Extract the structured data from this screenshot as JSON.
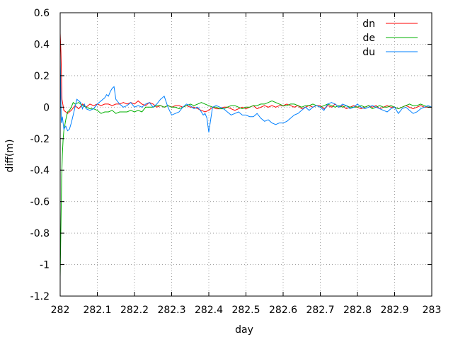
{
  "chart_data": {
    "type": "line",
    "title": "",
    "xlabel": "day",
    "ylabel": "diff(m)",
    "xlim": [
      282,
      283
    ],
    "ylim": [
      -1.2,
      0.6
    ],
    "xticks": [
      282,
      282.1,
      282.2,
      282.3,
      282.4,
      282.5,
      282.6,
      282.7,
      282.8,
      282.9,
      283
    ],
    "xtick_labels": [
      "282",
      "282.1",
      "282.2",
      "282.3",
      "282.4",
      "282.5",
      "282.6",
      "282.7",
      "282.8",
      "282.9",
      "283"
    ],
    "yticks": [
      -1.2,
      -1,
      -0.8,
      -0.6,
      -0.4,
      -0.2,
      0,
      0.2,
      0.4,
      0.6
    ],
    "ytick_labels": [
      "-1.2",
      "-1",
      "-0.8",
      "-0.6",
      "-0.4",
      "-0.2",
      "0",
      "0.2",
      "0.4",
      "0.6"
    ],
    "grid": true,
    "legend_position": "top-right",
    "series": [
      {
        "name": "dn",
        "color": "#ff0000",
        "x": [
          282.0,
          282.002,
          282.005,
          282.01,
          282.015,
          282.02,
          282.025,
          282.03,
          282.04,
          282.05,
          282.06,
          282.07,
          282.08,
          282.09,
          282.1,
          282.11,
          282.12,
          282.13,
          282.14,
          282.15,
          282.16,
          282.17,
          282.18,
          282.19,
          282.2,
          282.21,
          282.22,
          282.23,
          282.24,
          282.25,
          282.26,
          282.27,
          282.28,
          282.29,
          282.3,
          282.31,
          282.32,
          282.33,
          282.34,
          282.35,
          282.36,
          282.37,
          282.38,
          282.39,
          282.4,
          282.41,
          282.42,
          282.43,
          282.44,
          282.45,
          282.46,
          282.47,
          282.48,
          282.49,
          282.5,
          282.51,
          282.52,
          282.53,
          282.54,
          282.55,
          282.56,
          282.57,
          282.58,
          282.59,
          282.6,
          282.61,
          282.62,
          282.63,
          282.64,
          282.65,
          282.66,
          282.67,
          282.68,
          282.69,
          282.7,
          282.71,
          282.72,
          282.73,
          282.74,
          282.75,
          282.76,
          282.77,
          282.78,
          282.79,
          282.8,
          282.81,
          282.82,
          282.83,
          282.84,
          282.85,
          282.86,
          282.87,
          282.88,
          282.89,
          282.9,
          282.91,
          282.92,
          282.93,
          282.94,
          282.95,
          282.96,
          282.97,
          282.98,
          282.99,
          283.0
        ],
        "y": [
          0.47,
          0.35,
          0.05,
          -0.02,
          -0.03,
          -0.04,
          -0.03,
          -0.02,
          0.01,
          -0.01,
          0.02,
          0.0,
          0.02,
          0.01,
          0.02,
          0.01,
          0.02,
          0.02,
          0.01,
          0.02,
          0.02,
          0.03,
          0.02,
          0.03,
          0.02,
          0.04,
          0.02,
          0.01,
          0.03,
          0.02,
          0.0,
          0.01,
          0.0,
          0.01,
          0.0,
          0.01,
          0.01,
          0.0,
          0.01,
          0.0,
          0.0,
          -0.01,
          -0.02,
          -0.03,
          -0.02,
          0.0,
          -0.01,
          -0.01,
          0.0,
          0.0,
          -0.01,
          -0.02,
          -0.01,
          0.0,
          -0.01,
          0.0,
          0.01,
          -0.01,
          0.0,
          0.01,
          0.0,
          0.01,
          0.0,
          0.01,
          0.01,
          0.02,
          0.01,
          0.0,
          0.01,
          -0.01,
          0.0,
          0.01,
          0.0,
          0.01,
          0.01,
          -0.01,
          0.01,
          0.0,
          0.02,
          0.0,
          0.01,
          -0.01,
          0.0,
          0.01,
          0.0,
          -0.01,
          0.0,
          0.01,
          0.0,
          0.01,
          -0.01,
          0.0,
          0.01,
          0.0,
          0.0,
          -0.01,
          0.0,
          0.01,
          0.0,
          -0.01,
          0.0,
          0.01,
          0.0,
          0.0,
          0.0
        ]
      },
      {
        "name": "de",
        "color": "#00b000",
        "x": [
          282.0,
          282.002,
          282.004,
          282.006,
          282.008,
          282.01,
          282.015,
          282.02,
          282.025,
          282.03,
          282.035,
          282.04,
          282.05,
          282.06,
          282.07,
          282.08,
          282.09,
          282.1,
          282.11,
          282.12,
          282.13,
          282.14,
          282.15,
          282.16,
          282.17,
          282.18,
          282.19,
          282.2,
          282.21,
          282.22,
          282.23,
          282.24,
          282.25,
          282.26,
          282.27,
          282.28,
          282.29,
          282.3,
          282.31,
          282.32,
          282.33,
          282.34,
          282.35,
          282.36,
          282.37,
          282.38,
          282.39,
          282.4,
          282.41,
          282.42,
          282.43,
          282.44,
          282.45,
          282.46,
          282.47,
          282.48,
          282.49,
          282.5,
          282.51,
          282.52,
          282.53,
          282.54,
          282.55,
          282.56,
          282.57,
          282.58,
          282.59,
          282.6,
          282.61,
          282.62,
          282.63,
          282.64,
          282.65,
          282.66,
          282.67,
          282.68,
          282.69,
          282.7,
          282.71,
          282.72,
          282.73,
          282.74,
          282.75,
          282.76,
          282.77,
          282.78,
          282.79,
          282.8,
          282.81,
          282.82,
          282.83,
          282.84,
          282.85,
          282.86,
          282.87,
          282.88,
          282.89,
          282.9,
          282.91,
          282.92,
          282.93,
          282.94,
          282.95,
          282.96,
          282.97,
          282.98,
          282.99,
          283.0
        ],
        "y": [
          -1.08,
          -0.75,
          -0.45,
          -0.3,
          -0.2,
          -0.15,
          -0.08,
          -0.03,
          -0.02,
          0.0,
          0.03,
          0.02,
          0.03,
          0.01,
          0.0,
          -0.01,
          -0.01,
          -0.02,
          -0.04,
          -0.03,
          -0.03,
          -0.02,
          -0.04,
          -0.03,
          -0.03,
          -0.03,
          -0.02,
          -0.03,
          -0.02,
          -0.03,
          0.0,
          0.0,
          0.0,
          0.01,
          0.01,
          0.0,
          0.01,
          0.0,
          0.0,
          -0.01,
          0.0,
          0.01,
          0.02,
          0.01,
          0.02,
          0.03,
          0.02,
          0.01,
          0.0,
          0.0,
          -0.01,
          -0.01,
          0.0,
          0.01,
          0.01,
          0.0,
          -0.01,
          0.0,
          0.0,
          0.01,
          0.01,
          0.02,
          0.02,
          0.03,
          0.04,
          0.03,
          0.02,
          0.01,
          0.01,
          0.02,
          0.02,
          0.01,
          0.0,
          0.01,
          0.01,
          0.02,
          0.01,
          0.0,
          0.01,
          0.02,
          0.01,
          0.0,
          0.01,
          0.0,
          0.01,
          0.0,
          0.0,
          0.0,
          0.01,
          0.0,
          0.01,
          -0.01,
          0.0,
          0.01,
          0.0,
          0.0,
          0.01,
          0.0,
          -0.01,
          0.0,
          0.01,
          0.02,
          0.01,
          0.01,
          0.02,
          0.01,
          0.0,
          0.0
        ]
      },
      {
        "name": "du",
        "color": "#0080ff",
        "x": [
          282.0,
          282.003,
          282.006,
          282.01,
          282.015,
          282.02,
          282.025,
          282.03,
          282.035,
          282.04,
          282.045,
          282.05,
          282.055,
          282.06,
          282.065,
          282.07,
          282.08,
          282.09,
          282.1,
          282.11,
          282.12,
          282.125,
          282.13,
          282.135,
          282.14,
          282.145,
          282.15,
          282.16,
          282.17,
          282.18,
          282.19,
          282.2,
          282.21,
          282.22,
          282.23,
          282.24,
          282.25,
          282.26,
          282.27,
          282.28,
          282.29,
          282.3,
          282.31,
          282.32,
          282.33,
          282.34,
          282.35,
          282.36,
          282.37,
          282.38,
          282.385,
          282.39,
          282.395,
          282.4,
          282.405,
          282.41,
          282.42,
          282.43,
          282.44,
          282.45,
          282.46,
          282.47,
          282.48,
          282.49,
          282.5,
          282.51,
          282.52,
          282.53,
          282.54,
          282.55,
          282.56,
          282.57,
          282.58,
          282.59,
          282.6,
          282.61,
          282.62,
          282.63,
          282.64,
          282.65,
          282.66,
          282.67,
          282.68,
          282.69,
          282.7,
          282.71,
          282.72,
          282.73,
          282.74,
          282.75,
          282.76,
          282.77,
          282.78,
          282.79,
          282.8,
          282.81,
          282.82,
          282.83,
          282.84,
          282.85,
          282.86,
          282.87,
          282.88,
          282.89,
          282.9,
          282.91,
          282.92,
          282.93,
          282.94,
          282.95,
          282.96,
          282.97,
          282.98,
          282.99,
          283.0
        ],
        "y": [
          0.33,
          -0.1,
          -0.06,
          -0.14,
          -0.12,
          -0.15,
          -0.14,
          -0.1,
          -0.05,
          0.0,
          0.05,
          0.04,
          0.03,
          -0.01,
          0.02,
          -0.01,
          -0.02,
          -0.01,
          0.02,
          0.04,
          0.06,
          0.08,
          0.07,
          0.1,
          0.12,
          0.13,
          0.05,
          0.02,
          0.0,
          0.01,
          0.03,
          0.0,
          0.01,
          0.0,
          0.02,
          0.03,
          0.0,
          0.02,
          0.05,
          0.07,
          0.0,
          -0.05,
          -0.04,
          -0.03,
          0.0,
          0.02,
          0.01,
          -0.01,
          0.0,
          -0.03,
          -0.05,
          -0.04,
          -0.07,
          -0.16,
          -0.08,
          0.0,
          0.01,
          0.0,
          -0.01,
          -0.03,
          -0.05,
          -0.04,
          -0.03,
          -0.05,
          -0.05,
          -0.06,
          -0.06,
          -0.04,
          -0.07,
          -0.09,
          -0.08,
          -0.1,
          -0.11,
          -0.1,
          -0.1,
          -0.09,
          -0.07,
          -0.05,
          -0.04,
          -0.02,
          0.0,
          -0.02,
          0.0,
          0.01,
          0.0,
          -0.02,
          0.02,
          0.03,
          0.02,
          0.0,
          0.02,
          0.01,
          -0.01,
          0.0,
          0.02,
          0.0,
          -0.01,
          0.0,
          0.01,
          0.0,
          -0.01,
          -0.02,
          -0.03,
          -0.01,
          0.0,
          -0.04,
          -0.01,
          0.0,
          -0.02,
          -0.04,
          -0.03,
          -0.01,
          0.0,
          0.01,
          0.0
        ]
      }
    ]
  }
}
